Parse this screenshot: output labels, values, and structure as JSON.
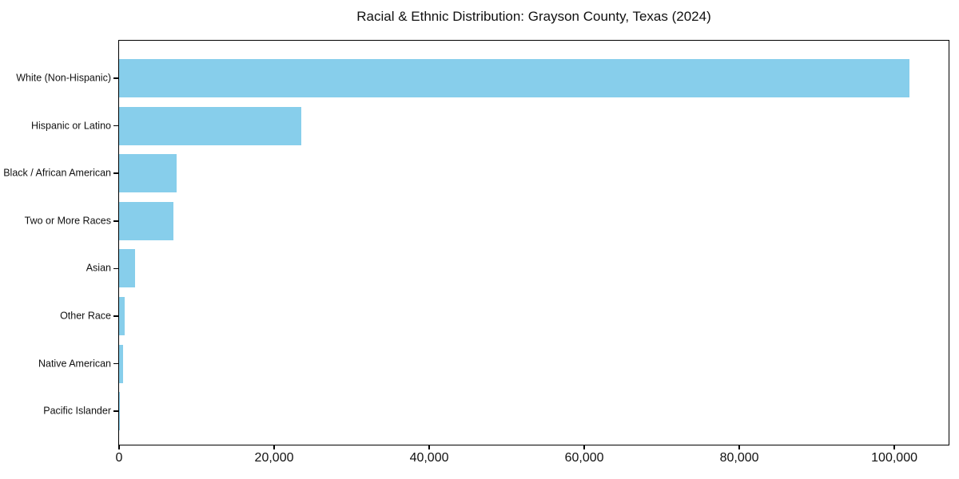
{
  "chart_data": {
    "type": "bar",
    "orientation": "horizontal",
    "title": "Racial & Ethnic Distribution: Grayson County, Texas (2024)",
    "categories": [
      "White (Non-Hispanic)",
      "Hispanic or Latino",
      "Black / African American",
      "Two or More Races",
      "Asian",
      "Other Race",
      "Native American",
      "Pacific Islander"
    ],
    "values": [
      102000,
      23500,
      7400,
      7000,
      2100,
      700,
      500,
      100
    ],
    "xlabel": "",
    "ylabel": "",
    "xlim": [
      0,
      107000
    ],
    "x_ticks": [
      0,
      20000,
      40000,
      60000,
      80000,
      100000
    ],
    "x_tick_labels": [
      "0",
      "20,000",
      "40,000",
      "60,000",
      "80,000",
      "100,000"
    ],
    "grid": false,
    "legend": "none",
    "bar_color": "#87CEEB",
    "axis_color": "#000000",
    "text_color": "#111111",
    "background_color": "#ffffff"
  }
}
